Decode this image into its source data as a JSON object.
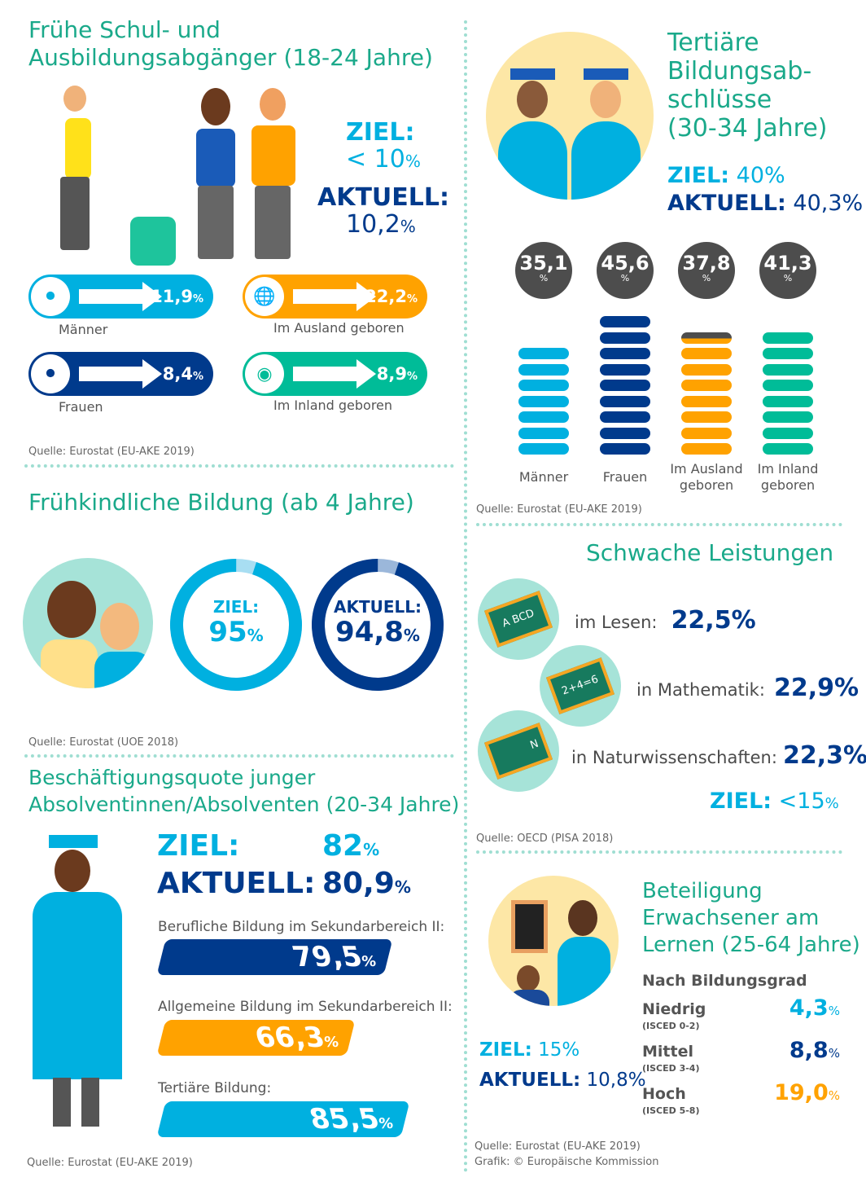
{
  "colors": {
    "title": "#1aa98a",
    "light_blue": "#00b0e0",
    "navy": "#003a8c",
    "orange": "#ffa200",
    "green": "#00bc98",
    "grey": "#4d4d4d"
  },
  "early_leavers": {
    "title": "Frühe Schul- und\nAusbildungsabgänger (18-24 Jahre)",
    "target_label": "ZIEL:",
    "target_value": "< 10",
    "current_label": "AKTUELL:",
    "current_value": "10,2",
    "pct": "%",
    "items": [
      {
        "label": "Männer",
        "value": "11,9",
        "icon": "male-icon"
      },
      {
        "label": "Im Ausland geboren",
        "value": "22,2",
        "icon": "globe-icon"
      },
      {
        "label": "Frauen",
        "value": "8,4",
        "icon": "female-icon"
      },
      {
        "label": "Im Inland geboren",
        "value": "8,9",
        "icon": "europe-map-icon"
      }
    ],
    "source": "Quelle: Eurostat (EU-AKE 2019)"
  },
  "tertiary": {
    "title": "Tertiäre\nBildungsab-\nschlüsse\n(30-34 Jahre)",
    "target_label": "ZIEL:",
    "target_value": "40%",
    "current_label": "AKTUELL:",
    "current_value": "40,3%",
    "pct": "%",
    "groups": [
      {
        "label": "Männer",
        "value": "35,1",
        "num": 35.1,
        "color": "#00b0e0"
      },
      {
        "label": "Frauen",
        "value": "45,6",
        "num": 45.6,
        "color": "#003a8c"
      },
      {
        "label": "Im Ausland\ngeboren",
        "value": "37,8",
        "num": 37.8,
        "color": "#ffa200"
      },
      {
        "label": "Im Inland\ngeboren",
        "value": "41,3",
        "num": 41.3,
        "color": "#00bc98"
      }
    ],
    "source": "Quelle: Eurostat (EU-AKE 2019)"
  },
  "early_childhood": {
    "title": "Frühkindliche Bildung (ab 4 Jahre)",
    "target_label": "ZIEL:",
    "target_value": "95",
    "target_num": 95,
    "current_label": "AKTUELL:",
    "current_value": "94,8",
    "current_num": 94.8,
    "pct": "%",
    "source": "Quelle: Eurostat (UOE 2018)"
  },
  "low_achievement": {
    "title": "Schwache Leistungen",
    "items": [
      {
        "label": "im Lesen:",
        "value": "22,5%",
        "board": "A BCD"
      },
      {
        "label": "in Mathematik:",
        "value": "22,9%",
        "board": "2+4=6"
      },
      {
        "label": "in Naturwissenschaften:",
        "value": "22,3%",
        "board": "N"
      }
    ],
    "target_label": "ZIEL:",
    "target_value": "<15",
    "pct": "%",
    "source": "Quelle: OECD (PISA 2018)"
  },
  "employment": {
    "title": "Beschäftigungsquote junger\nAbsolventinnen/Absolventen (20-34 Jahre)",
    "target_label": "ZIEL:",
    "target_value": "82",
    "current_label": "AKTUELL:",
    "current_value": "80,9",
    "pct": "%",
    "bars": [
      {
        "label": "Berufliche Bildung im Sekundarbereich II:",
        "value": "79,5",
        "num": 79.5,
        "color": "#003a8c"
      },
      {
        "label": "Allgemeine Bildung im Sekundarbereich II:",
        "value": "66,3",
        "num": 66.3,
        "color": "#ffa200"
      },
      {
        "label": "Tertiäre Bildung:",
        "value": "85,5",
        "num": 85.5,
        "color": "#00b0e0"
      }
    ],
    "source": "Quelle: Eurostat (EU-AKE 2019)"
  },
  "adult_learning": {
    "title": "Beteiligung\nErwachsener am\nLernen (25-64 Jahre)",
    "subtitle": "Nach Bildungsgrad",
    "target_label": "ZIEL:",
    "target_value": "15%",
    "current_label": "AKTUELL:",
    "current_value": "10,8%",
    "pct": "%",
    "levels": [
      {
        "label": "Niedrig",
        "isced": "(ISCED 0-2)",
        "value": "4,3",
        "color": "#00b0e0"
      },
      {
        "label": "Mittel",
        "isced": "(ISCED 3-4)",
        "value": "8,8",
        "color": "#003a8c"
      },
      {
        "label": "Hoch",
        "isced": "(ISCED 5-8)",
        "value": "19,0",
        "color": "#ffa200"
      }
    ],
    "source": "Quelle: Eurostat (EU-AKE 2019)\nGrafik: © Europäische Kommission"
  }
}
